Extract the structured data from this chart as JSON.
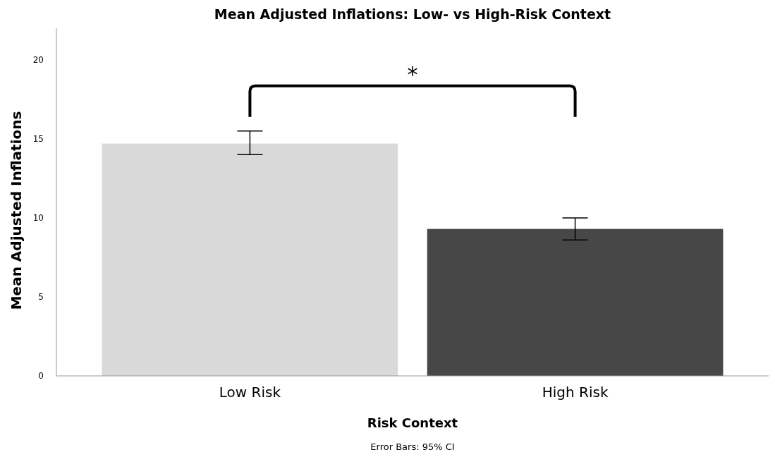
{
  "chart_data": {
    "type": "bar",
    "title": "Mean Adjusted Inflations: Low- vs High-Risk Context",
    "xlabel": "Risk Context",
    "ylabel": "Mean Adjusted Inflations",
    "categories": [
      "Low Risk",
      "High Risk"
    ],
    "values": [
      14.7,
      9.3
    ],
    "colors": [
      "#d9d9d9",
      "#474747"
    ],
    "errors": [
      [
        14.0,
        15.5
      ],
      [
        8.6,
        10.0
      ]
    ],
    "ylim": [
      0,
      22
    ],
    "yticks": [
      0,
      5,
      10,
      15,
      20
    ],
    "grid": false,
    "annotations": [
      "*",
      "Error Bars: 95% CI"
    ]
  }
}
